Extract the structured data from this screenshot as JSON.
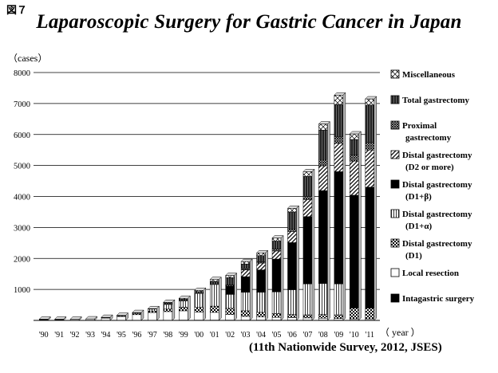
{
  "figure_label": "図７",
  "chart_data": {
    "type": "bar",
    "stacked": true,
    "title": "Laparoscopic Surgery for Gastric Cancer in Japan",
    "ylabel": "（cases）",
    "xlabel": "（ year ）",
    "source": "(11th Nationwide Survey, 2012, JSES)",
    "ylim": [
      0,
      8000
    ],
    "yticks": [
      1000,
      2000,
      3000,
      4000,
      5000,
      6000,
      7000,
      8000
    ],
    "ytick_labels": [
      "1000",
      "2000",
      "3000",
      "4000",
      "5000",
      "6000",
      "7000",
      "8000"
    ],
    "categories": [
      "'90",
      "'91",
      "'92",
      "'93",
      "'94",
      "'95",
      "'96",
      "'97",
      "'98",
      "'99",
      "'00",
      "'01",
      "'02",
      "'03",
      "'04",
      "'05",
      "'06",
      "'07",
      "'08",
      "'09",
      "'10",
      "'11"
    ],
    "series": [
      {
        "name": "Intagastric surgery",
        "pattern": "solid-black",
        "values": [
          40,
          30,
          10,
          10,
          5,
          5,
          5,
          5,
          5,
          10,
          10,
          10,
          10,
          10,
          10,
          10,
          10,
          10,
          10,
          10,
          10,
          10
        ]
      },
      {
        "name": "Local resection",
        "pattern": "white",
        "values": [
          0,
          10,
          30,
          40,
          70,
          120,
          180,
          250,
          280,
          300,
          260,
          250,
          180,
          120,
          100,
          90,
          80,
          70,
          60,
          50,
          40,
          40
        ]
      },
      {
        "name": "Distal gastrectomy (D1)",
        "pattern": "checker",
        "values": [
          0,
          0,
          0,
          0,
          10,
          20,
          30,
          50,
          80,
          120,
          150,
          200,
          200,
          180,
          150,
          120,
          100,
          100,
          120,
          120,
          350,
          350
        ]
      },
      {
        "name": "Distal gastrectomy (D1+α)",
        "pattern": "vertical-lines",
        "values": [
          0,
          0,
          0,
          0,
          5,
          10,
          30,
          60,
          150,
          200,
          450,
          700,
          450,
          600,
          650,
          700,
          800,
          1000,
          1000,
          1000,
          0,
          0
        ]
      },
      {
        "name": "Distal gastrectomy (D1+β)",
        "pattern": "solid-black",
        "values": [
          0,
          0,
          0,
          0,
          0,
          0,
          0,
          0,
          0,
          0,
          0,
          0,
          270,
          500,
          720,
          1060,
          1520,
          2170,
          3000,
          3620,
          3640,
          3900
        ]
      },
      {
        "name": "Distal gastrectomy (D2 or more)",
        "pattern": "diagonal",
        "values": [
          0,
          0,
          0,
          0,
          0,
          0,
          0,
          0,
          0,
          0,
          0,
          0,
          0,
          220,
          220,
          260,
          360,
          550,
          800,
          920,
          1100,
          1200
        ]
      },
      {
        "name": "Proximal gastrectomy",
        "pattern": "cross-dense",
        "values": [
          0,
          0,
          0,
          0,
          0,
          0,
          0,
          0,
          0,
          0,
          0,
          0,
          40,
          40,
          40,
          60,
          80,
          100,
          200,
          200,
          200,
          250
        ]
      },
      {
        "name": "Total gastrectomy",
        "pattern": "dark-vertical",
        "values": [
          0,
          0,
          0,
          0,
          0,
          0,
          0,
          0,
          50,
          60,
          60,
          100,
          230,
          150,
          200,
          260,
          550,
          650,
          950,
          1050,
          500,
          1200
        ]
      },
      {
        "name": "Miscellaneous",
        "pattern": "cross-light",
        "values": [
          0,
          0,
          0,
          0,
          10,
          10,
          10,
          15,
          20,
          25,
          40,
          60,
          70,
          80,
          90,
          100,
          120,
          150,
          200,
          300,
          180,
          200
        ]
      }
    ],
    "legend": [
      {
        "label": "Miscellaneous",
        "label2": "",
        "pattern": "cross-light"
      },
      {
        "label": "Total gastrectomy",
        "label2": "",
        "pattern": "dark-vertical"
      },
      {
        "label": "Proximal",
        "label2": "gastrectomy",
        "pattern": "cross-dense"
      },
      {
        "label": "Distal gastrectomy",
        "label2": "(D2 or more)",
        "pattern": "diagonal"
      },
      {
        "label": "Distal gastrectomy",
        "label2": "(D1+β)",
        "pattern": "solid-black"
      },
      {
        "label": "Distal gastrectomy",
        "label2": "(D1+α)",
        "pattern": "vertical-lines"
      },
      {
        "label": "Distal gastrectomy",
        "label2": "(D1)",
        "pattern": "checker"
      },
      {
        "label": "Local resection",
        "label2": "",
        "pattern": "white"
      },
      {
        "label": "Intagastric surgery",
        "label2": "",
        "pattern": "solid-black"
      }
    ],
    "legend_position": "right",
    "grid": true
  }
}
